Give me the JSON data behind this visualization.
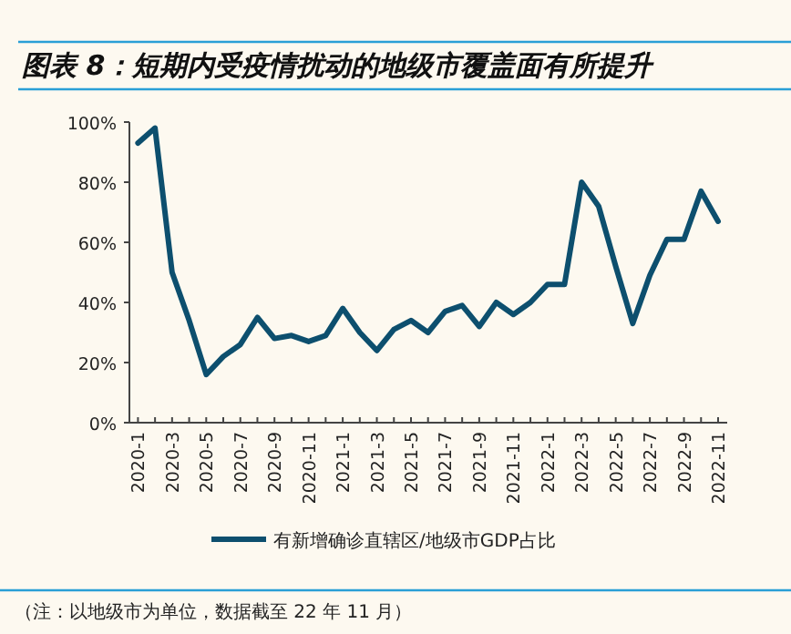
{
  "chart_data": {
    "type": "line",
    "title": "图表 8：短期内受疫情扰动的地级市覆盖面有所提升",
    "categories": [
      "2020-1",
      null,
      "2020-3",
      null,
      "2020-5",
      null,
      "2020-7",
      null,
      "2020-9",
      null,
      "2020-11",
      null,
      "2021-1",
      null,
      "2021-3",
      null,
      "2021-5",
      null,
      "2021-7",
      null,
      "2021-9",
      null,
      "2021-11",
      null,
      "2022-1",
      null,
      "2022-3",
      null,
      "2022-5",
      null,
      "2022-7",
      null,
      "2022-9",
      null,
      "2022-11"
    ],
    "series": [
      {
        "name": "有新增确诊直辖区/地级市GDP占比",
        "color": "#0d4f6e",
        "values": [
          93,
          98,
          50,
          34,
          16,
          22,
          26,
          35,
          28,
          29,
          27,
          29,
          38,
          30,
          24,
          31,
          34,
          30,
          37,
          39,
          32,
          40,
          36,
          40,
          46,
          46,
          80,
          72,
          52,
          33,
          49,
          61,
          61,
          77,
          67
        ]
      }
    ],
    "ylim": [
      0,
      100
    ],
    "yticks": [
      {
        "value": 0,
        "label": "0%"
      },
      {
        "value": 20,
        "label": "20%"
      },
      {
        "value": 40,
        "label": "40%"
      },
      {
        "value": 60,
        "label": "60%"
      },
      {
        "value": 80,
        "label": "80%"
      },
      {
        "value": 100,
        "label": "100%"
      }
    ],
    "legend": "bottom",
    "annotations": [
      "（注：以地级市为单位，数据截至 22 年 11 月）"
    ]
  }
}
